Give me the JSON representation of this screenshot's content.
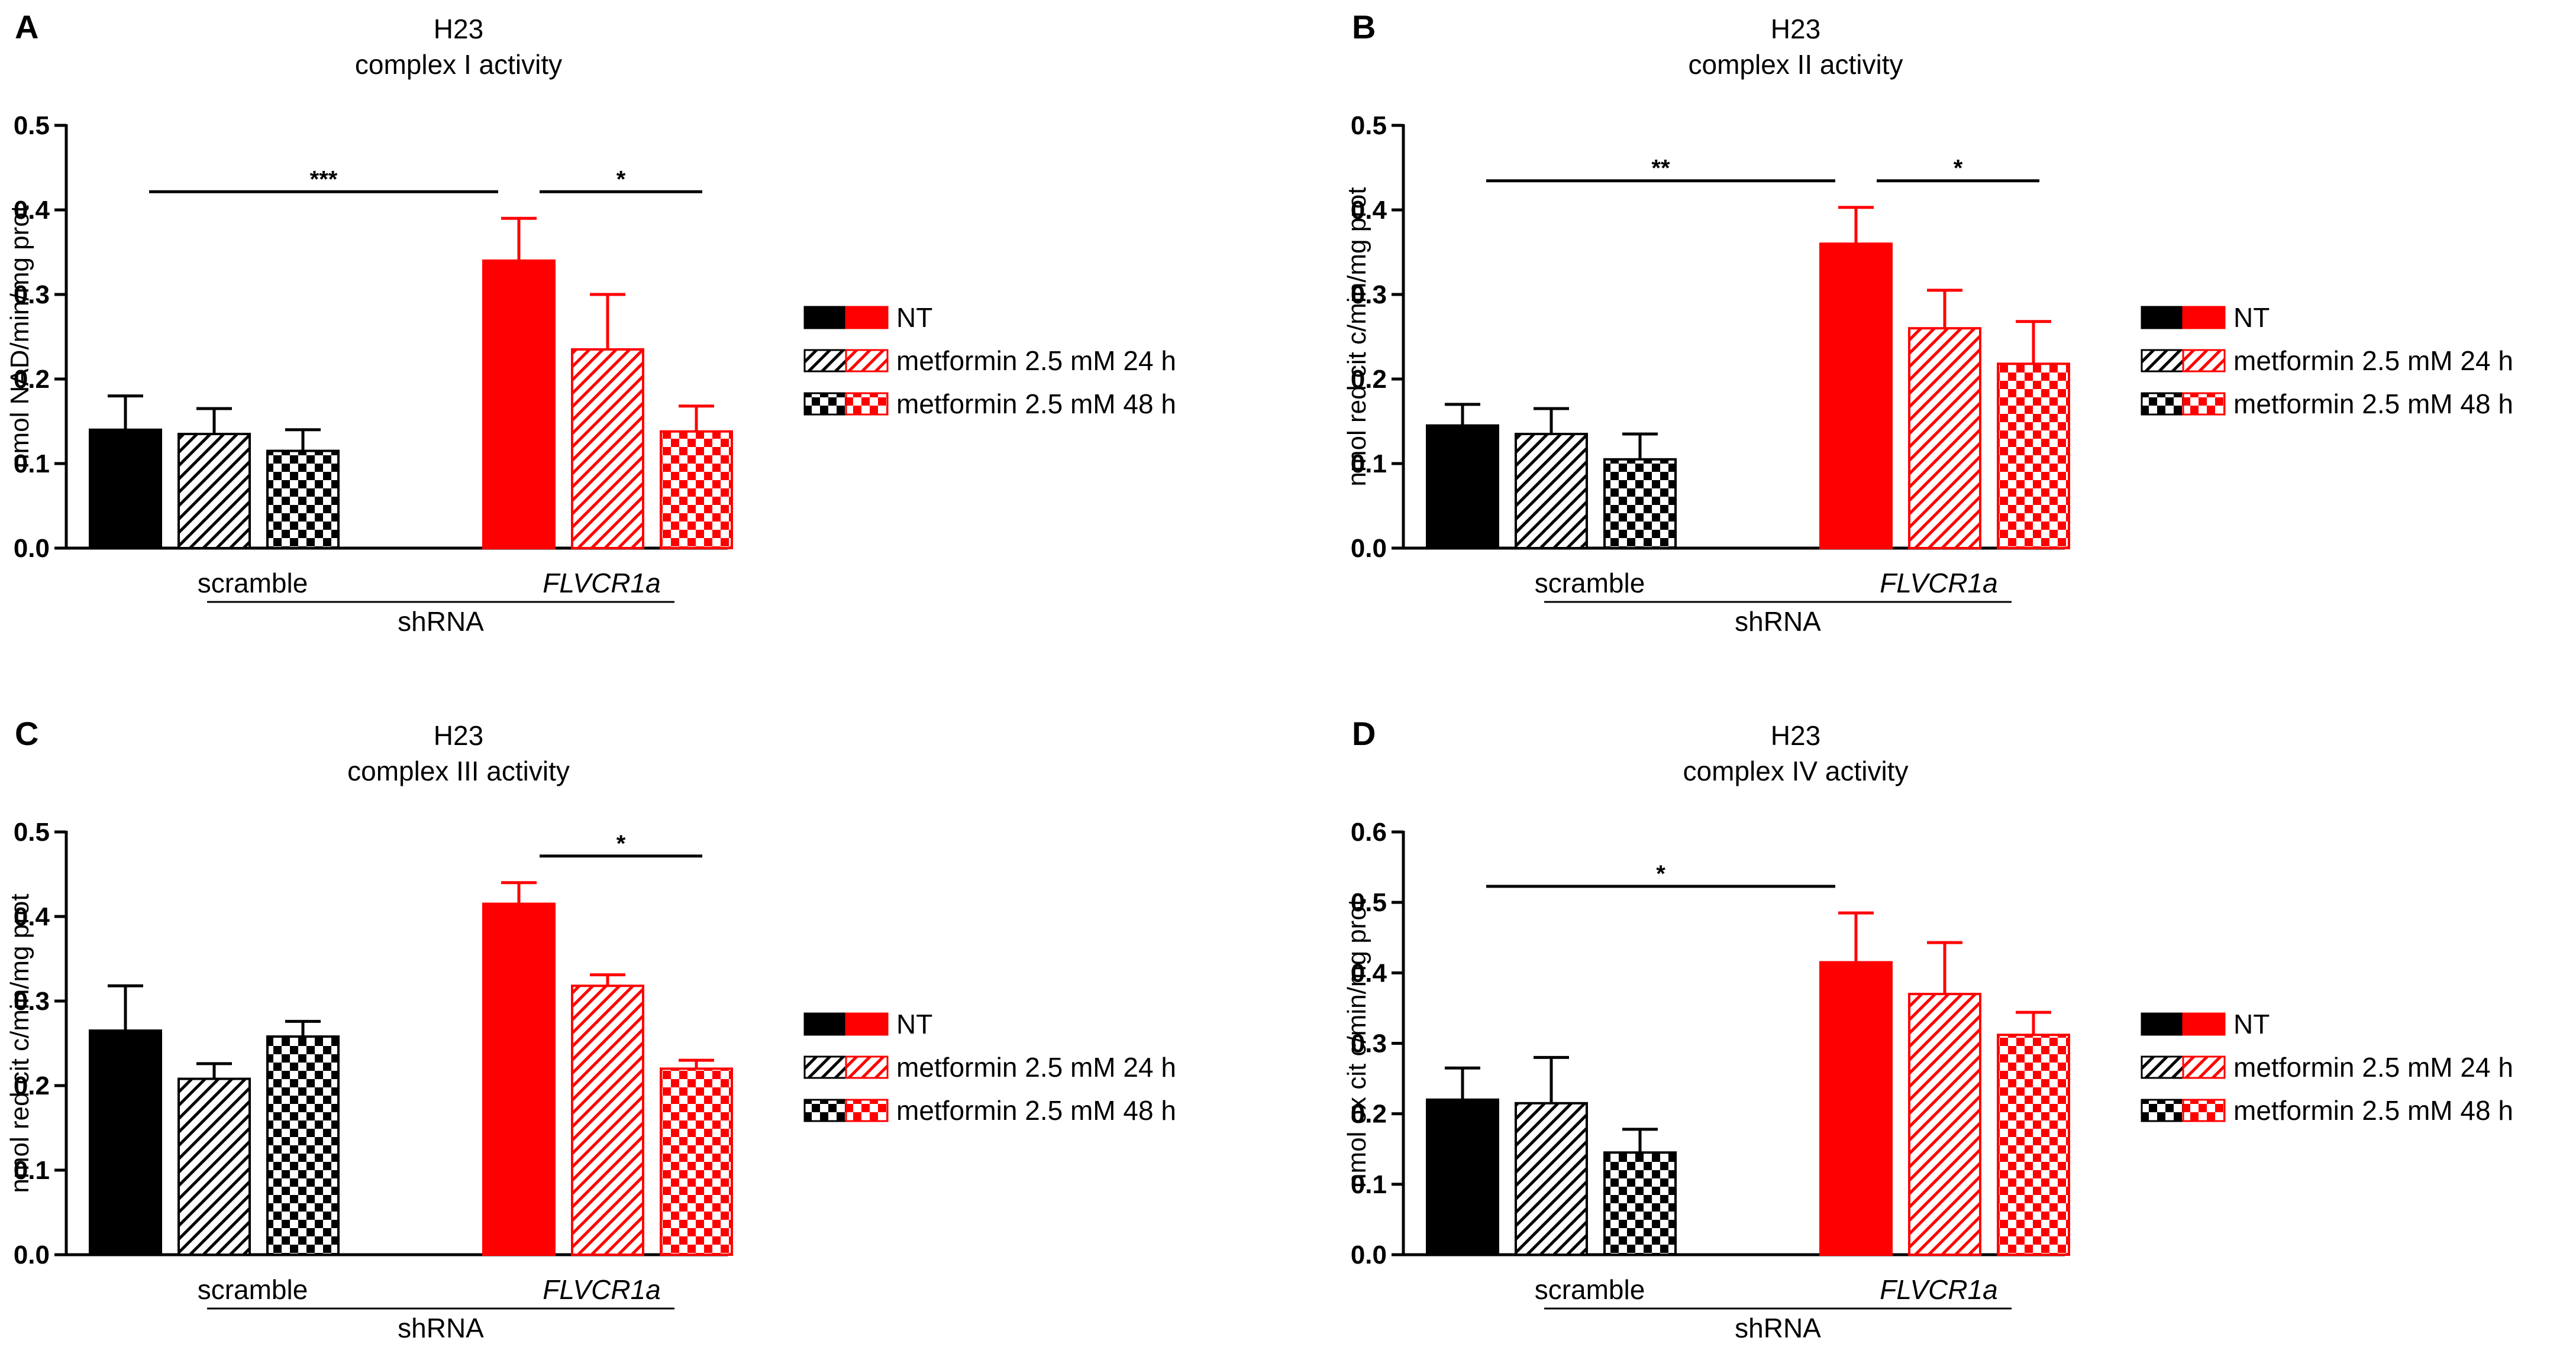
{
  "colors": {
    "scramble": "#000000",
    "flvcr1a": "#ff0000"
  },
  "legend": [
    "NT",
    "metformin 2.5 mM 24 h",
    "metformin 2.5 mM 48 h"
  ],
  "chart_data": [
    {
      "type": "bar",
      "panel": "A",
      "title": "H23",
      "subtitle": "complex I activity",
      "ylabel": "nmol NAD/min/mg prot",
      "ylim": [
        0,
        0.5
      ],
      "yticks": [
        "0.0",
        "0.1",
        "0.2",
        "0.3",
        "0.4",
        "0.5"
      ],
      "categories": [
        "scramble",
        "FLVCR1a"
      ],
      "xlabel": "shRNA",
      "series": [
        {
          "name": "NT",
          "values": [
            0.14,
            0.34
          ],
          "errors": [
            0.04,
            0.05
          ]
        },
        {
          "name": "metformin 2.5 mM 24 h",
          "values": [
            0.135,
            0.235
          ],
          "errors": [
            0.03,
            0.065
          ]
        },
        {
          "name": "metformin 2.5 mM 48 h",
          "values": [
            0.115,
            0.138
          ],
          "errors": [
            0.025,
            0.03
          ]
        }
      ],
      "significance": [
        {
          "from": "scramble NT",
          "to": "FLVCR1a NT",
          "label": "***"
        },
        {
          "from": "FLVCR1a NT",
          "to": "FLVCR1a metformin 2.5 mM 48 h",
          "label": "*"
        }
      ]
    },
    {
      "type": "bar",
      "panel": "B",
      "title": "H23",
      "subtitle": "complex II activity",
      "ylabel": "nmol red cit c/min/mg prot",
      "ylim": [
        0,
        0.5
      ],
      "yticks": [
        "0.0",
        "0.1",
        "0.2",
        "0.3",
        "0.4",
        "0.5"
      ],
      "categories": [
        "scramble",
        "FLVCR1a"
      ],
      "xlabel": "shRNA",
      "series": [
        {
          "name": "NT",
          "values": [
            0.145,
            0.36
          ],
          "errors": [
            0.025,
            0.043
          ]
        },
        {
          "name": "metformin 2.5 mM 24 h",
          "values": [
            0.135,
            0.26
          ],
          "errors": [
            0.03,
            0.045
          ]
        },
        {
          "name": "metformin 2.5 mM 48 h",
          "values": [
            0.105,
            0.218
          ],
          "errors": [
            0.03,
            0.05
          ]
        }
      ],
      "significance": [
        {
          "from": "scramble NT",
          "to": "FLVCR1a NT",
          "label": "**"
        },
        {
          "from": "FLVCR1a NT",
          "to": "FLVCR1a metformin 2.5 mM 48 h",
          "label": "*"
        }
      ]
    },
    {
      "type": "bar",
      "panel": "C",
      "title": "H23",
      "subtitle": "complex III activity",
      "ylabel": "nmol red cit c/min/mg prot",
      "ylim": [
        0,
        0.5
      ],
      "yticks": [
        "0.0",
        "0.1",
        "0.2",
        "0.3",
        "0.4",
        "0.5"
      ],
      "categories": [
        "scramble",
        "FLVCR1a"
      ],
      "xlabel": "shRNA",
      "series": [
        {
          "name": "NT",
          "values": [
            0.265,
            0.415
          ],
          "errors": [
            0.053,
            0.025
          ]
        },
        {
          "name": "metformin 2.5 mM 24 h",
          "values": [
            0.208,
            0.318
          ],
          "errors": [
            0.018,
            0.013
          ]
        },
        {
          "name": "metformin 2.5 mM 48 h",
          "values": [
            0.258,
            0.22
          ],
          "errors": [
            0.018,
            0.01
          ]
        }
      ],
      "significance": [
        {
          "from": "FLVCR1a NT",
          "to": "FLVCR1a metformin 2.5 mM 48 h",
          "label": "*"
        }
      ]
    },
    {
      "type": "bar",
      "panel": "D",
      "title": "H23",
      "subtitle": "complex IV activity",
      "ylabel": "nmol ox cit c/min/mg prot",
      "ylim": [
        0,
        0.6
      ],
      "yticks": [
        "0.0",
        "0.1",
        "0.2",
        "0.3",
        "0.4",
        "0.5",
        "0.6"
      ],
      "categories": [
        "scramble",
        "FLVCR1a"
      ],
      "xlabel": "shRNA",
      "series": [
        {
          "name": "NT",
          "values": [
            0.22,
            0.415
          ],
          "errors": [
            0.045,
            0.07
          ]
        },
        {
          "name": "metformin 2.5 mM 24 h",
          "values": [
            0.215,
            0.37
          ],
          "errors": [
            0.065,
            0.073
          ]
        },
        {
          "name": "metformin 2.5 mM 48 h",
          "values": [
            0.145,
            0.312
          ],
          "errors": [
            0.033,
            0.032
          ]
        }
      ],
      "significance": [
        {
          "from": "scramble NT",
          "to": "FLVCR1a NT",
          "label": "*"
        }
      ]
    }
  ]
}
